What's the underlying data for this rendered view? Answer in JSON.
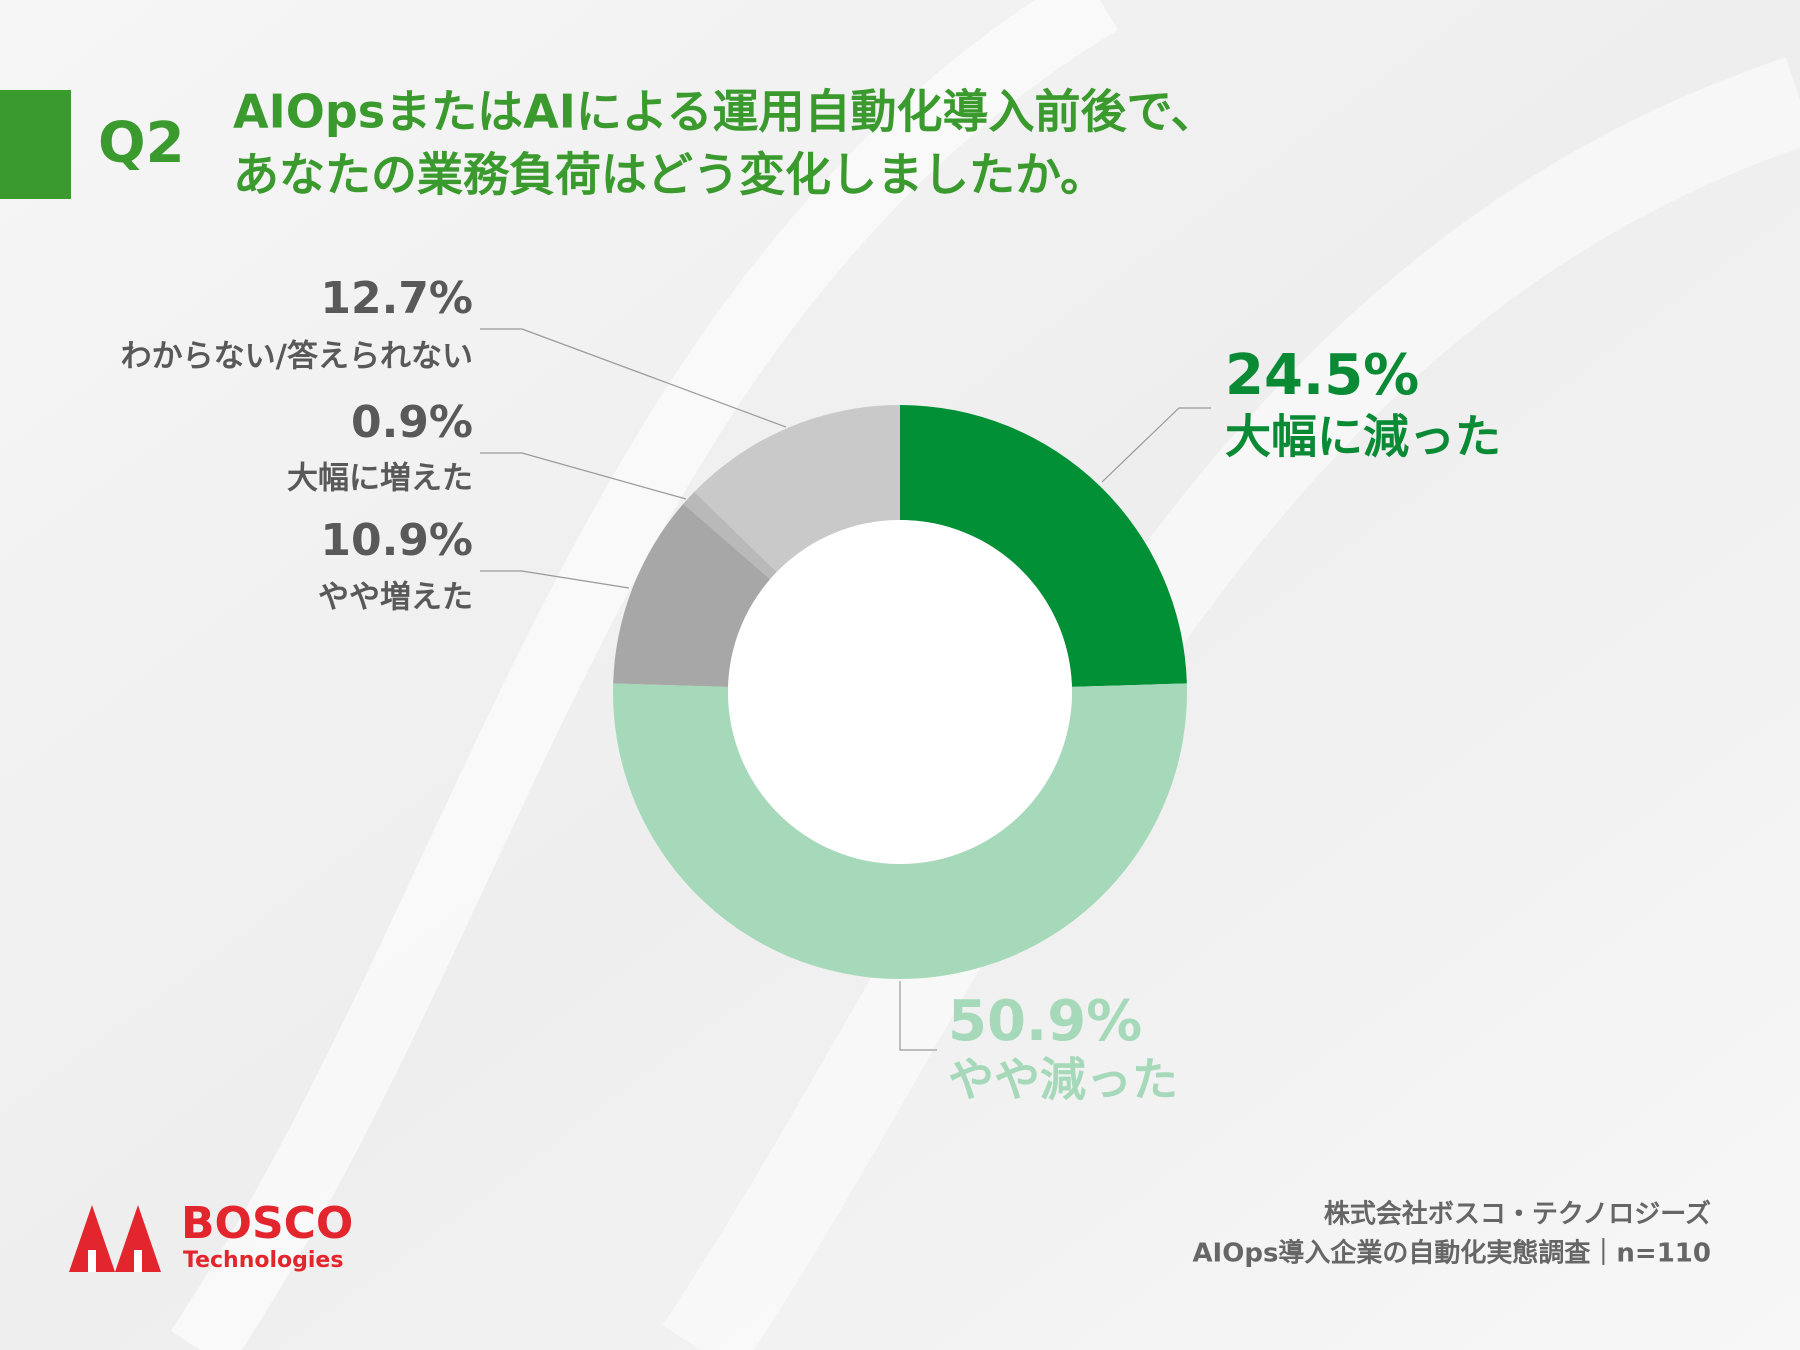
{
  "chart_data": {
    "type": "donut",
    "question": "Q2",
    "title": [
      "AIOpsまたはAIによる運用自動化導入前後で、",
      "あなたの業務負荷はどう変化しましたか。"
    ],
    "categories": [
      "大幅に減った",
      "やや減った",
      "やや増えた",
      "大幅に増えた",
      "わからない/答えられない"
    ],
    "values": [
      24.5,
      50.9,
      10.9,
      0.9,
      12.7
    ],
    "value_labels": [
      "24.5%",
      "50.9%",
      "10.9%",
      "0.9%",
      "12.7%"
    ],
    "colors": [
      "#019035",
      "#a6d9b9",
      "#a7a7a7",
      "#b9b9b9",
      "#c9c9c9"
    ]
  },
  "footer": {
    "source": [
      "株式会社ボスコ・テクノロジーズ",
      "AIOps導入企業の自動化実態調査｜n=110"
    ],
    "logo": {
      "name": "BOSCO",
      "sub": "Technologies"
    }
  }
}
